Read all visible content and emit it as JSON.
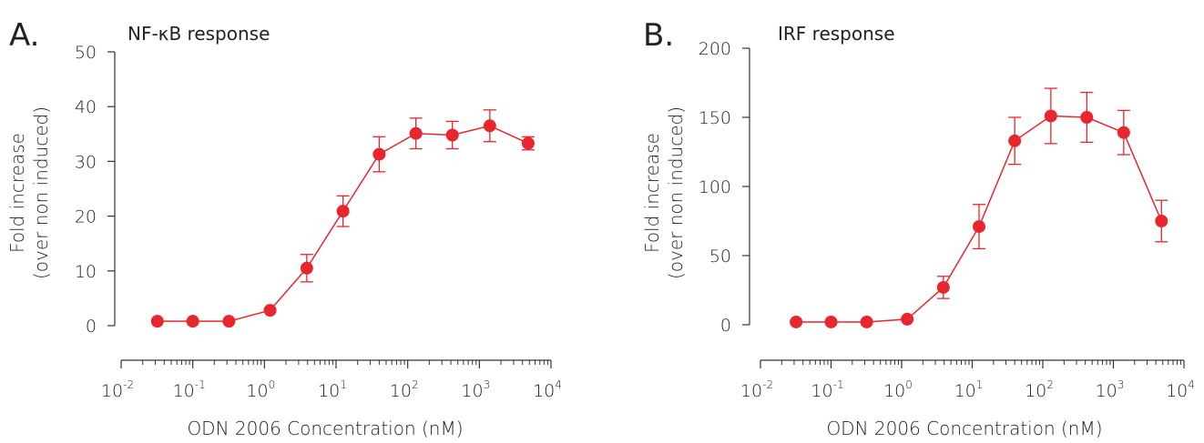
{
  "colors": {
    "series": "#e8262d",
    "axis": "#333333"
  },
  "chart_data": [
    {
      "type": "line",
      "panel_label": "A.",
      "title": "NF-κB response",
      "xlabel": "ODN 2006 Concentration (nM)",
      "ylabel": [
        "Fold increase",
        "(over non induced)"
      ],
      "xscale": "log",
      "xlim": [
        0.01,
        10000
      ],
      "ylim": [
        0,
        50
      ],
      "yticks": [
        "0",
        "10",
        "20",
        "30",
        "40",
        "50"
      ],
      "xticks": [
        {
          "base": "10",
          "exp": "-2"
        },
        {
          "base": "10",
          "exp": "-1"
        },
        {
          "base": "10",
          "exp": "0"
        },
        {
          "base": "10",
          "exp": "1"
        },
        {
          "base": "10",
          "exp": "2"
        },
        {
          "base": "10",
          "exp": "3"
        },
        {
          "base": "10",
          "exp": "4"
        }
      ],
      "series": [
        {
          "x": [
            0.032,
            0.1,
            0.32,
            1.2,
            3.9,
            12.5,
            40,
            130,
            420,
            1400,
            4800
          ],
          "y": [
            0.8,
            0.8,
            0.8,
            2.8,
            10.5,
            20.9,
            31.3,
            35.1,
            34.8,
            36.5,
            33.3
          ],
          "error": [
            0,
            0,
            0,
            0,
            2.5,
            2.8,
            3.2,
            2.8,
            2.5,
            2.9,
            1.2
          ]
        }
      ]
    },
    {
      "type": "line",
      "panel_label": "B.",
      "title": "IRF response",
      "xlabel": "ODN 2006 Concentration (nM)",
      "ylabel": [
        "Fold increase",
        "(over non induced)"
      ],
      "xscale": "log",
      "xlim": [
        0.01,
        10000
      ],
      "ylim": [
        0,
        200
      ],
      "yticks": [
        "0",
        "50",
        "100",
        "150",
        "200"
      ],
      "xticks": [
        {
          "base": "10",
          "exp": "-2"
        },
        {
          "base": "10",
          "exp": "-1"
        },
        {
          "base": "10",
          "exp": "0"
        },
        {
          "base": "10",
          "exp": "1"
        },
        {
          "base": "10",
          "exp": "2"
        },
        {
          "base": "10",
          "exp": "3"
        },
        {
          "base": "10",
          "exp": "4"
        }
      ],
      "series": [
        {
          "x": [
            0.032,
            0.1,
            0.32,
            1.2,
            3.9,
            12.5,
            40,
            130,
            420,
            1400,
            4800
          ],
          "y": [
            2,
            2,
            2,
            4,
            27,
            71,
            133,
            151,
            150,
            139,
            75
          ],
          "error": [
            0,
            0,
            0,
            0,
            8,
            16,
            17,
            20,
            18,
            16,
            15
          ]
        }
      ]
    }
  ]
}
